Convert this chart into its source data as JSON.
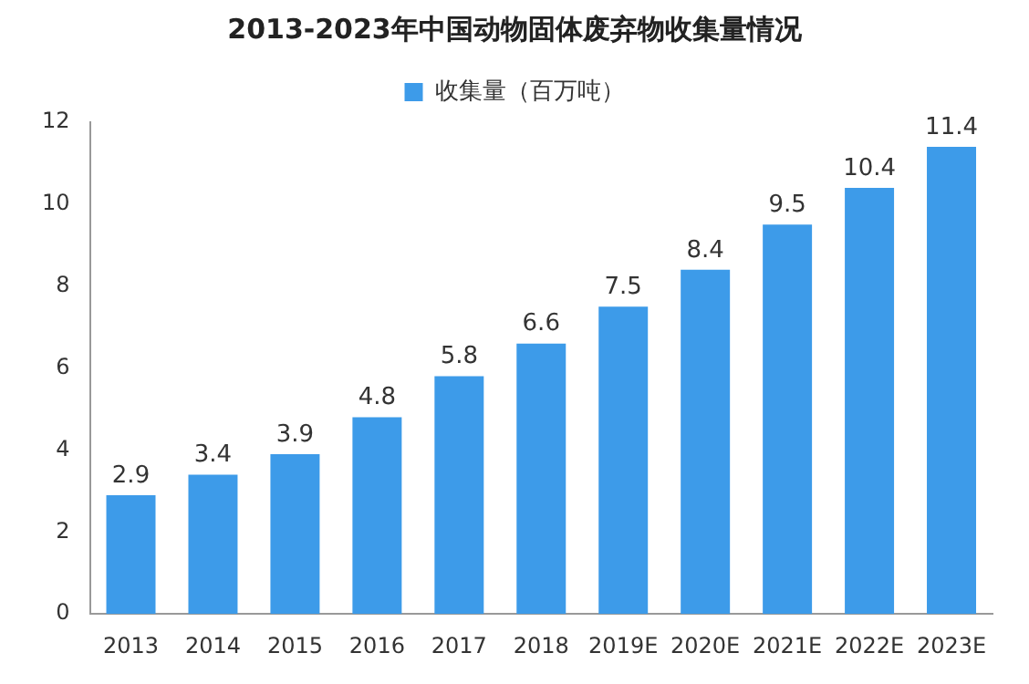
{
  "chart_data": {
    "type": "bar",
    "title": "2013-2023年中国动物固体废弃物收集量情况",
    "categories": [
      "2013",
      "2014",
      "2015",
      "2016",
      "2017",
      "2018",
      "2019E",
      "2020E",
      "2021E",
      "2022E",
      "2023E"
    ],
    "series": [
      {
        "name": "收集量（百万吨）",
        "color": "#3d9be9",
        "values": [
          2.9,
          3.4,
          3.9,
          4.8,
          5.8,
          6.6,
          7.5,
          8.4,
          9.5,
          10.4,
          11.4
        ]
      }
    ],
    "ylim": [
      0,
      12
    ],
    "yticks": [
      0,
      2,
      4,
      6,
      8,
      10,
      12
    ],
    "grid": false,
    "legend": "top",
    "data_labels": true
  }
}
